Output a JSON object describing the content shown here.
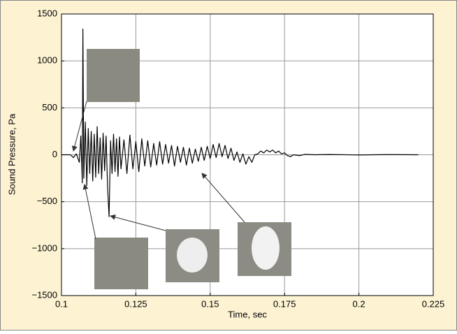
{
  "chart_data": {
    "type": "line",
    "xlabel": "Time, sec",
    "ylabel": "Sound Pressure, Pa",
    "xlim": [
      0.1,
      0.225
    ],
    "xticks": [
      0.1,
      0.125,
      0.15,
      0.175,
      0.2,
      0.225
    ],
    "ylim": [
      -1500,
      1500
    ],
    "yticks": [
      {
        "value": -1500,
        "label": "−1500"
      },
      {
        "value": -1000,
        "label": "−1000"
      },
      {
        "value": -500,
        "label": "−500"
      },
      0,
      500,
      1000,
      1500
    ],
    "grid": true,
    "series": [
      {
        "color": "#000000",
        "x": [
          0.1,
          0.103,
          0.104,
          0.105,
          0.106,
          0.1065,
          0.107,
          0.1072,
          0.1075,
          0.108,
          0.1085,
          0.109,
          0.1095,
          0.11,
          0.1105,
          0.111,
          0.1115,
          0.112,
          0.1125,
          0.113,
          0.1135,
          0.114,
          0.1145,
          0.115,
          0.1155,
          0.116,
          0.1165,
          0.117,
          0.1175,
          0.118,
          0.1185,
          0.119,
          0.1195,
          0.12,
          0.121,
          0.122,
          0.123,
          0.124,
          0.125,
          0.126,
          0.127,
          0.128,
          0.129,
          0.13,
          0.131,
          0.132,
          0.133,
          0.134,
          0.135,
          0.136,
          0.137,
          0.138,
          0.139,
          0.14,
          0.141,
          0.142,
          0.143,
          0.144,
          0.145,
          0.146,
          0.147,
          0.148,
          0.149,
          0.15,
          0.151,
          0.152,
          0.153,
          0.154,
          0.155,
          0.156,
          0.157,
          0.158,
          0.159,
          0.16,
          0.161,
          0.162,
          0.163,
          0.164,
          0.165,
          0.166,
          0.167,
          0.168,
          0.169,
          0.17,
          0.171,
          0.172,
          0.173,
          0.174,
          0.175,
          0.176,
          0.177,
          0.178,
          0.18,
          0.182,
          0.185,
          0.19,
          0.2,
          0.21,
          0.22
        ],
        "values": [
          0,
          0,
          -30,
          10,
          -80,
          200,
          -300,
          1340,
          -250,
          350,
          -330,
          280,
          -200,
          250,
          -280,
          220,
          -240,
          300,
          -200,
          180,
          -260,
          230,
          -170,
          200,
          -350,
          -660,
          150,
          -200,
          220,
          -180,
          170,
          -230,
          190,
          -150,
          160,
          -200,
          210,
          -150,
          140,
          -180,
          170,
          -120,
          150,
          -130,
          120,
          -110,
          140,
          -100,
          110,
          -90,
          100,
          -120,
          90,
          -80,
          80,
          -110,
          70,
          -90,
          60,
          -70,
          80,
          -60,
          90,
          -40,
          110,
          -30,
          120,
          -20,
          100,
          -40,
          70,
          -60,
          30,
          -80,
          10,
          -100,
          -20,
          -80,
          0,
          10,
          40,
          20,
          50,
          30,
          50,
          20,
          40,
          10,
          20,
          -10,
          -20,
          0,
          -10,
          5,
          0,
          3,
          -2,
          2,
          0
        ]
      }
    ]
  }
}
